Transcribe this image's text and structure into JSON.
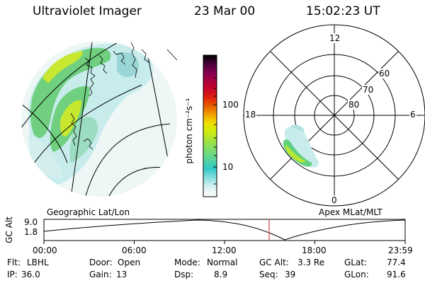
{
  "header": {
    "instrument": "Ultraviolet Imager",
    "date": "23 Mar 00",
    "time": "15:02:23 UT"
  },
  "geo_panel": {
    "label": "Geographic Lat/Lon"
  },
  "apex_panel": {
    "label": "Apex MLat/MLT",
    "mlt_labels": {
      "top": "12",
      "bottom": "0",
      "left": "18",
      "right": "6"
    },
    "lat_labels": [
      "60",
      "70",
      "80"
    ]
  },
  "colorbar": {
    "unit_label": "photon cm⁻²s⁻¹",
    "ticks": [
      "100",
      "10"
    ],
    "scale": "log",
    "colors": [
      "#ffffff",
      "#b0e8ec",
      "#30c8c8",
      "#60d890",
      "#a8e040",
      "#e8f000",
      "#f0b000",
      "#e86000",
      "#d81020",
      "#a00040",
      "#500040",
      "#000000"
    ]
  },
  "altitude_plot": {
    "ylabel": "GC Alt",
    "yticks": [
      "9.0",
      "1.8"
    ],
    "xticks": [
      "00:00",
      "06:00",
      "12:00",
      "18:00",
      "23:59"
    ],
    "marker_time": "15:02",
    "marker_color": "#d02020"
  },
  "info": {
    "row1": [
      {
        "label": "Flt:",
        "value": "LBHL"
      },
      {
        "label": "Door:",
        "value": "Open"
      },
      {
        "label": "Mode:",
        "value": "Normal"
      },
      {
        "label": "GC Alt:",
        "value": "3.3 Re"
      },
      {
        "label": "GLat:",
        "value": "77.4"
      }
    ],
    "row2": [
      {
        "label": "IP:",
        "value": "36.0"
      },
      {
        "label": "Gain:",
        "value": "13"
      },
      {
        "label": "Dsp:",
        "value": "8.9"
      },
      {
        "label": "Seq:",
        "value": "39"
      },
      {
        "label": "GLon:",
        "value": "91.6"
      }
    ]
  }
}
